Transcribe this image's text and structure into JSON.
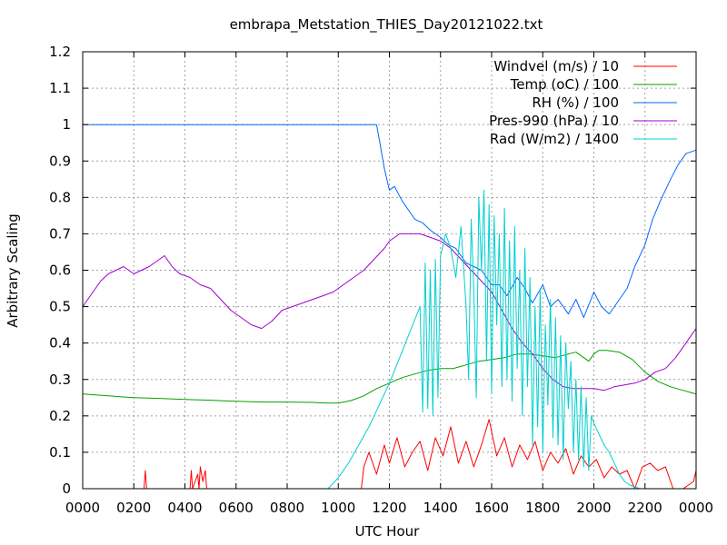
{
  "chart_data": {
    "type": "line",
    "title": "embrapa_Metstation_THIES_Day20121022.txt",
    "xlabel": "UTC Hour",
    "ylabel": "Arbitrary Scaling",
    "xlim": [
      0,
      24
    ],
    "ylim": [
      0,
      1.2
    ],
    "grid": true,
    "legend_position": "top-right",
    "x_ticks": [
      {
        "v": 0,
        "label": "0000"
      },
      {
        "v": 2,
        "label": "0200"
      },
      {
        "v": 4,
        "label": "0400"
      },
      {
        "v": 6,
        "label": "0600"
      },
      {
        "v": 8,
        "label": "0800"
      },
      {
        "v": 10,
        "label": "1000"
      },
      {
        "v": 12,
        "label": "1200"
      },
      {
        "v": 14,
        "label": "1400"
      },
      {
        "v": 16,
        "label": "1600"
      },
      {
        "v": 18,
        "label": "1800"
      },
      {
        "v": 20,
        "label": "2000"
      },
      {
        "v": 22,
        "label": "2200"
      },
      {
        "v": 24,
        "label": "0000"
      }
    ],
    "y_ticks": [
      {
        "v": 0,
        "label": "0"
      },
      {
        "v": 0.1,
        "label": "0.1"
      },
      {
        "v": 0.2,
        "label": "0.2"
      },
      {
        "v": 0.3,
        "label": "0.3"
      },
      {
        "v": 0.4,
        "label": "0.4"
      },
      {
        "v": 0.5,
        "label": "0.5"
      },
      {
        "v": 0.6,
        "label": "0.6"
      },
      {
        "v": 0.7,
        "label": "0.7"
      },
      {
        "v": 0.8,
        "label": "0.8"
      },
      {
        "v": 0.9,
        "label": "0.9"
      },
      {
        "v": 1.0,
        "label": "1"
      },
      {
        "v": 1.1,
        "label": "1.1"
      },
      {
        "v": 1.2,
        "label": "1.2"
      }
    ],
    "series": [
      {
        "name": "Windvel (m/s) / 10",
        "color": "#ff0000",
        "x": [
          0,
          2.4,
          2.45,
          2.5,
          2.55,
          4.2,
          4.25,
          4.3,
          4.5,
          4.55,
          4.6,
          4.7,
          4.8,
          4.85,
          5.0,
          10.9,
          11.0,
          11.2,
          11.5,
          11.8,
          12.0,
          12.3,
          12.6,
          12.9,
          13.2,
          13.5,
          13.8,
          14.1,
          14.4,
          14.7,
          15.0,
          15.3,
          15.6,
          15.9,
          16.2,
          16.5,
          16.8,
          17.1,
          17.4,
          17.7,
          18.0,
          18.3,
          18.6,
          18.9,
          19.2,
          19.5,
          19.8,
          20.1,
          20.4,
          20.7,
          21.0,
          21.3,
          21.6,
          21.9,
          22.2,
          22.5,
          22.8,
          23.0,
          23.1,
          23.5,
          23.9,
          24.0
        ],
        "y": [
          0,
          0,
          0.05,
          0,
          0,
          0,
          0.05,
          0,
          0.04,
          0,
          0.06,
          0.02,
          0.05,
          0,
          0,
          0,
          0.06,
          0.1,
          0.04,
          0.12,
          0.07,
          0.14,
          0.06,
          0.1,
          0.13,
          0.05,
          0.14,
          0.09,
          0.17,
          0.07,
          0.13,
          0.06,
          0.12,
          0.19,
          0.09,
          0.14,
          0.06,
          0.12,
          0.08,
          0.13,
          0.05,
          0.1,
          0.07,
          0.11,
          0.04,
          0.09,
          0.06,
          0.08,
          0.03,
          0.06,
          0.04,
          0.05,
          0,
          0.06,
          0.07,
          0.05,
          0.06,
          0.02,
          0,
          0,
          0.02,
          0.05
        ]
      },
      {
        "name": "Temp (oC) / 100",
        "color": "#00a000",
        "x": [
          0,
          1,
          2,
          3,
          4,
          5,
          6,
          7,
          8,
          9,
          9.5,
          10,
          10.5,
          11,
          11.5,
          12,
          12.5,
          13,
          13.5,
          14,
          14.5,
          15,
          15.5,
          16,
          16.5,
          17,
          17.5,
          18,
          18.5,
          19,
          19.3,
          19.6,
          19.8,
          20,
          20.2,
          20.5,
          21,
          21.5,
          22,
          22.5,
          23,
          23.5,
          24
        ],
        "y": [
          0.26,
          0.255,
          0.25,
          0.248,
          0.245,
          0.243,
          0.24,
          0.238,
          0.238,
          0.237,
          0.235,
          0.235,
          0.242,
          0.255,
          0.275,
          0.29,
          0.305,
          0.315,
          0.325,
          0.33,
          0.33,
          0.34,
          0.35,
          0.355,
          0.36,
          0.37,
          0.37,
          0.365,
          0.36,
          0.37,
          0.375,
          0.36,
          0.35,
          0.37,
          0.38,
          0.38,
          0.375,
          0.355,
          0.32,
          0.295,
          0.28,
          0.27,
          0.26
        ]
      },
      {
        "name": "RH (%) / 100",
        "color": "#0066ff",
        "x": [
          0,
          11.5,
          11.6,
          11.8,
          12.0,
          12.2,
          12.5,
          12.8,
          13.0,
          13.3,
          13.6,
          14.0,
          14.3,
          14.6,
          15.0,
          15.3,
          15.6,
          16.0,
          16.3,
          16.6,
          17.0,
          17.3,
          17.6,
          18.0,
          18.3,
          18.6,
          19.0,
          19.3,
          19.6,
          20.0,
          20.3,
          20.6,
          21.0,
          21.3,
          21.6,
          22.0,
          22.3,
          22.6,
          23.0,
          23.3,
          23.6,
          24.0
        ],
        "y": [
          1.0,
          1.0,
          0.96,
          0.88,
          0.82,
          0.83,
          0.79,
          0.76,
          0.74,
          0.73,
          0.71,
          0.69,
          0.67,
          0.66,
          0.62,
          0.61,
          0.6,
          0.56,
          0.56,
          0.53,
          0.58,
          0.55,
          0.51,
          0.56,
          0.5,
          0.52,
          0.48,
          0.52,
          0.47,
          0.54,
          0.5,
          0.48,
          0.52,
          0.55,
          0.61,
          0.67,
          0.74,
          0.79,
          0.85,
          0.89,
          0.92,
          0.93
        ]
      },
      {
        "name": "Pres-990 (hPa) / 10",
        "color": "#a000d0",
        "x": [
          0,
          0.3,
          0.7,
          1.0,
          1.3,
          1.6,
          2.0,
          2.3,
          2.6,
          3.0,
          3.2,
          3.5,
          3.8,
          4.2,
          4.6,
          5.0,
          5.4,
          5.8,
          6.2,
          6.6,
          7.0,
          7.4,
          7.8,
          8.2,
          8.6,
          9.0,
          9.4,
          9.8,
          10.2,
          10.6,
          11.0,
          11.4,
          11.8,
          12.0,
          12.4,
          12.8,
          13.2,
          13.6,
          14.0,
          14.4,
          14.8,
          15.2,
          15.6,
          16.0,
          16.4,
          16.8,
          17.2,
          17.6,
          18.0,
          18.4,
          18.8,
          19.2,
          19.6,
          20.0,
          20.4,
          20.8,
          21.2,
          21.6,
          22.0,
          22.4,
          22.8,
          23.2,
          23.6,
          24.0
        ],
        "y": [
          0.5,
          0.53,
          0.57,
          0.59,
          0.6,
          0.61,
          0.59,
          0.6,
          0.61,
          0.63,
          0.64,
          0.61,
          0.59,
          0.58,
          0.56,
          0.55,
          0.52,
          0.49,
          0.47,
          0.45,
          0.44,
          0.46,
          0.49,
          0.5,
          0.51,
          0.52,
          0.53,
          0.54,
          0.56,
          0.58,
          0.6,
          0.63,
          0.66,
          0.68,
          0.7,
          0.7,
          0.7,
          0.69,
          0.68,
          0.66,
          0.63,
          0.6,
          0.57,
          0.54,
          0.49,
          0.44,
          0.4,
          0.37,
          0.33,
          0.3,
          0.28,
          0.275,
          0.275,
          0.275,
          0.27,
          0.28,
          0.285,
          0.29,
          0.3,
          0.32,
          0.33,
          0.36,
          0.4,
          0.44
        ]
      },
      {
        "name": "Rad (W/m2) / 1400",
        "color": "#00d0d0",
        "x": [
          0,
          9.6,
          10.0,
          10.4,
          10.8,
          11.2,
          11.6,
          12.0,
          12.4,
          12.8,
          13.2,
          13.3,
          13.4,
          13.5,
          13.6,
          13.7,
          13.8,
          13.9,
          14.0,
          14.2,
          14.4,
          14.6,
          14.8,
          15.0,
          15.1,
          15.2,
          15.3,
          15.4,
          15.5,
          15.6,
          15.7,
          15.8,
          15.9,
          16.0,
          16.1,
          16.2,
          16.3,
          16.4,
          16.5,
          16.6,
          16.7,
          16.8,
          16.9,
          17.0,
          17.1,
          17.2,
          17.3,
          17.4,
          17.5,
          17.6,
          17.7,
          17.8,
          17.9,
          18.0,
          18.1,
          18.2,
          18.3,
          18.4,
          18.5,
          18.6,
          18.7,
          18.8,
          18.9,
          19.0,
          19.1,
          19.2,
          19.3,
          19.4,
          19.5,
          19.6,
          19.7,
          19.8,
          19.9,
          20.0,
          20.2,
          20.4,
          20.6,
          20.8,
          21.0,
          21.2,
          21.4,
          21.8,
          24.0
        ],
        "y": [
          0,
          0,
          0.03,
          0.07,
          0.12,
          0.17,
          0.23,
          0.29,
          0.36,
          0.43,
          0.5,
          0.21,
          0.62,
          0.22,
          0.6,
          0.2,
          0.63,
          0.25,
          0.64,
          0.7,
          0.66,
          0.58,
          0.72,
          0.5,
          0.3,
          0.74,
          0.55,
          0.25,
          0.8,
          0.6,
          0.82,
          0.35,
          0.78,
          0.26,
          0.75,
          0.45,
          0.7,
          0.28,
          0.77,
          0.3,
          0.68,
          0.24,
          0.72,
          0.33,
          0.6,
          0.2,
          0.66,
          0.28,
          0.58,
          0.12,
          0.5,
          0.17,
          0.55,
          0.1,
          0.45,
          0.23,
          0.52,
          0.14,
          0.47,
          0.12,
          0.42,
          0.08,
          0.4,
          0.22,
          0.35,
          0.1,
          0.3,
          0.08,
          0.28,
          0.06,
          0.25,
          0.05,
          0.2,
          0.18,
          0.15,
          0.12,
          0.1,
          0.07,
          0.04,
          0.02,
          0.01,
          0,
          0
        ]
      }
    ]
  }
}
